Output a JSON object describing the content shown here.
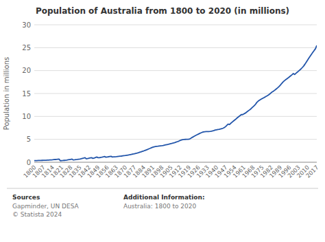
{
  "chart_data": {
    "type": "line",
    "title": "Population of Australia from 1800 to 2020 (in millions)",
    "y_label": "Population in millions",
    "annotations": [
      "Sources",
      "Gapminder, UN DESA",
      "© Statista 2024",
      "Additional Information:",
      "Australia: 1800 to 2020"
    ],
    "color": "#2255aa",
    "grid": true,
    "xlim": [
      1800,
      2017
    ],
    "xticks": [
      1800,
      1807,
      1814,
      1821,
      1828,
      1835,
      1842,
      1849,
      1856,
      1863,
      1870,
      1877,
      1884,
      1891,
      1898,
      1905,
      1912,
      1919,
      1926,
      1933,
      1940,
      1947,
      1954,
      1961,
      1968,
      1975,
      1982,
      1989,
      1996,
      2003,
      2010,
      2017
    ],
    "ylim": [
      0,
      30
    ],
    "yticks": [
      0,
      5,
      10,
      15,
      20,
      25,
      30
    ],
    "x": [
      1800,
      1801,
      1802,
      1803,
      1804,
      1805,
      1806,
      1807,
      1808,
      1809,
      1810,
      1811,
      1812,
      1813,
      1814,
      1815,
      1816,
      1817,
      1818,
      1819,
      1820,
      1821,
      1822,
      1823,
      1824,
      1825,
      1826,
      1827,
      1828,
      1829,
      1830,
      1831,
      1832,
      1833,
      1834,
      1835,
      1836,
      1837,
      1838,
      1839,
      1840,
      1841,
      1842,
      1843,
      1844,
      1845,
      1846,
      1847,
      1848,
      1849,
      1850,
      1851,
      1852,
      1853,
      1854,
      1855,
      1856,
      1857,
      1858,
      1859,
      1860,
      1861,
      1862,
      1863,
      1864,
      1865,
      1866,
      1867,
      1868,
      1869,
      1870,
      1871,
      1872,
      1873,
      1874,
      1875,
      1876,
      1877,
      1878,
      1879,
      1880,
      1881,
      1882,
      1883,
      1884,
      1885,
      1886,
      1887,
      1888,
      1889,
      1890,
      1891,
      1892,
      1893,
      1894,
      1895,
      1896,
      1897,
      1898,
      1899,
      1900,
      1901,
      1902,
      1903,
      1904,
      1905,
      1906,
      1907,
      1908,
      1909,
      1910,
      1911,
      1912,
      1913,
      1914,
      1915,
      1916,
      1917,
      1918,
      1919,
      1920,
      1921,
      1922,
      1923,
      1924,
      1925,
      1926,
      1927,
      1928,
      1929,
      1930,
      1931,
      1932,
      1933,
      1934,
      1935,
      1936,
      1937,
      1938,
      1939,
      1940,
      1941,
      1942,
      1943,
      1944,
      1945,
      1946,
      1947,
      1948,
      1949,
      1950,
      1951,
      1952,
      1953,
      1954,
      1955,
      1956,
      1957,
      1958,
      1959,
      1960,
      1961,
      1962,
      1963,
      1964,
      1965,
      1966,
      1967,
      1968,
      1969,
      1970,
      1971,
      1972,
      1973,
      1974,
      1975,
      1976,
      1977,
      1978,
      1979,
      1980,
      1981,
      1982,
      1983,
      1984,
      1985,
      1986,
      1987,
      1988,
      1989,
      1990,
      1991,
      1992,
      1993,
      1994,
      1995,
      1996,
      1997,
      1998,
      1999,
      2000,
      2001,
      2002,
      2003,
      2004,
      2005,
      2006,
      2007,
      2008,
      2009,
      2010,
      2011,
      2012,
      2013,
      2014,
      2015,
      2016,
      2017
    ],
    "values": [
      0.35,
      0.36,
      0.37,
      0.38,
      0.39,
      0.4,
      0.41,
      0.42,
      0.43,
      0.44,
      0.46,
      0.48,
      0.5,
      0.52,
      0.54,
      0.57,
      0.6,
      0.63,
      0.66,
      0.69,
      0.34,
      0.36,
      0.38,
      0.41,
      0.44,
      0.48,
      0.53,
      0.58,
      0.63,
      0.68,
      0.5,
      0.53,
      0.57,
      0.61,
      0.66,
      0.71,
      0.77,
      0.84,
      0.91,
      0.99,
      0.75,
      0.82,
      0.88,
      0.94,
      1.0,
      0.84,
      0.93,
      1.03,
      1.14,
      1.0,
      1.0,
      1.05,
      1.12,
      1.18,
      1.25,
      1.1,
      1.16,
      1.2,
      1.25,
      1.3,
      1.15,
      1.17,
      1.19,
      1.22,
      1.26,
      1.29,
      1.32,
      1.35,
      1.39,
      1.43,
      1.47,
      1.52,
      1.57,
      1.62,
      1.68,
      1.74,
      1.8,
      1.87,
      1.94,
      2.01,
      2.09,
      2.18,
      2.27,
      2.37,
      2.47,
      2.58,
      2.69,
      2.8,
      2.92,
      3.04,
      3.17,
      3.28,
      3.36,
      3.42,
      3.47,
      3.5,
      3.54,
      3.58,
      3.62,
      3.67,
      3.74,
      3.8,
      3.86,
      3.92,
      3.99,
      4.06,
      4.13,
      4.21,
      4.3,
      4.4,
      4.5,
      4.6,
      4.76,
      4.85,
      4.94,
      4.97,
      4.99,
      5.0,
      5.01,
      5.03,
      5.17,
      5.38,
      5.53,
      5.69,
      5.85,
      6.0,
      6.14,
      6.28,
      6.41,
      6.53,
      6.63,
      6.67,
      6.68,
      6.68,
      6.7,
      6.72,
      6.76,
      6.83,
      6.92,
      7.02,
      7.08,
      7.14,
      7.18,
      7.25,
      7.32,
      7.43,
      7.58,
      7.78,
      8.07,
      8.33,
      8.22,
      8.52,
      8.76,
      9.0,
      9.23,
      9.46,
      9.71,
      9.94,
      10.16,
      10.39,
      10.39,
      10.55,
      10.7,
      10.91,
      11.13,
      11.34,
      11.55,
      11.82,
      12.09,
      12.37,
      12.66,
      13.07,
      13.34,
      13.55,
      13.72,
      13.89,
      14.03,
      14.19,
      14.36,
      14.52,
      14.7,
      14.92,
      15.18,
      15.39,
      15.58,
      15.79,
      16.02,
      16.26,
      16.53,
      16.83,
      17.17,
      17.48,
      17.75,
      17.99,
      18.19,
      18.4,
      18.64,
      18.87,
      19.1,
      19.35,
      19.15,
      19.41,
      19.64,
      19.9,
      20.13,
      20.4,
      20.7,
      21.02,
      21.43,
      21.87,
      22.32,
      22.75,
      23.18,
      23.6,
      23.99,
      24.39,
      24.77,
      25.49
    ]
  }
}
